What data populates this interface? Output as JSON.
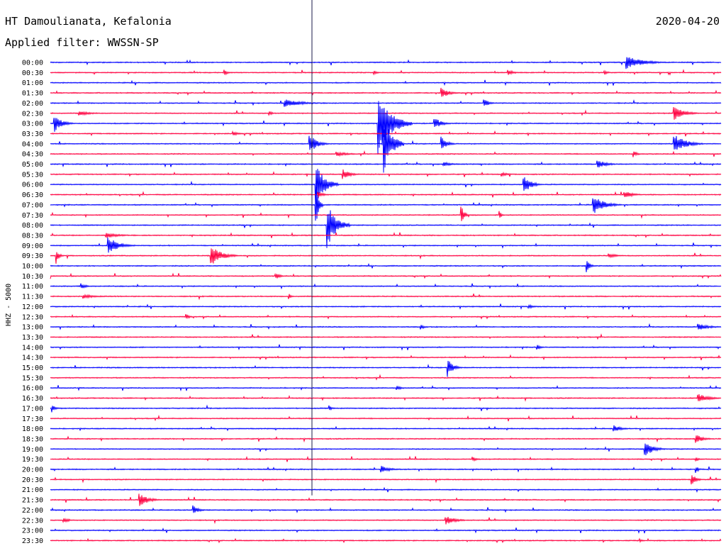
{
  "header": {
    "station": "HT Damoulianata, Kefalonia",
    "date": "2020-04-20",
    "filter": "Applied filter: WWSSN-SP"
  },
  "chart_data": {
    "type": "line",
    "title": "HT Damoulianata, Kefalonia",
    "ylabel": "HHZ - 5000",
    "row_labels": [
      "00:00",
      "00:30",
      "01:00",
      "01:30",
      "02:00",
      "02:30",
      "03:00",
      "03:30",
      "04:00",
      "04:30",
      "05:00",
      "05:30",
      "06:00",
      "06:30",
      "07:00",
      "07:30",
      "08:00",
      "08:30",
      "09:00",
      "09:30",
      "10:00",
      "10:30",
      "11:00",
      "11:30",
      "12:00",
      "12:30",
      "13:00",
      "13:30",
      "14:00",
      "14:30",
      "15:00",
      "15:30",
      "16:00",
      "16:30",
      "17:00",
      "17:30",
      "18:00",
      "18:30",
      "19:00",
      "19:30",
      "20:00",
      "20:30",
      "21:00",
      "21:30",
      "22:00",
      "22:30",
      "23:00",
      "23:30"
    ],
    "trace_colors": [
      "#0000ff",
      "#ff0040"
    ],
    "minutes_per_line": 30,
    "current_time_marker": "21:00",
    "events": [
      {
        "row": 0,
        "minute": 25.8,
        "amp": 9,
        "dur": 1.8
      },
      {
        "row": 1,
        "minute": 7.8,
        "amp": 4,
        "dur": 0.3
      },
      {
        "row": 1,
        "minute": 14.5,
        "amp": 3,
        "dur": 0.3
      },
      {
        "row": 1,
        "minute": 20.5,
        "amp": 4,
        "dur": 0.6
      },
      {
        "row": 1,
        "minute": 24.8,
        "amp": 3,
        "dur": 0.4
      },
      {
        "row": 3,
        "minute": 17.5,
        "amp": 8,
        "dur": 0.8
      },
      {
        "row": 4,
        "minute": 10.5,
        "amp": 6,
        "dur": 1.8
      },
      {
        "row": 4,
        "minute": 19.4,
        "amp": 7,
        "dur": 0.5
      },
      {
        "row": 5,
        "minute": 1.3,
        "amp": 3,
        "dur": 1.5
      },
      {
        "row": 5,
        "minute": 9.8,
        "amp": 3,
        "dur": 0.4
      },
      {
        "row": 5,
        "minute": 27.9,
        "amp": 10,
        "dur": 1.2
      },
      {
        "row": 6,
        "minute": 0.2,
        "amp": 12,
        "dur": 0.8
      },
      {
        "row": 6,
        "minute": 14.7,
        "amp": 40,
        "dur": 1.5
      },
      {
        "row": 6,
        "minute": 17.2,
        "amp": 9,
        "dur": 0.7
      },
      {
        "row": 7,
        "minute": 8.2,
        "amp": 3,
        "dur": 0.6
      },
      {
        "row": 8,
        "minute": 11.6,
        "amp": 14,
        "dur": 0.8
      },
      {
        "row": 8,
        "minute": 14.9,
        "amp": 42,
        "dur": 0.9
      },
      {
        "row": 8,
        "minute": 17.5,
        "amp": 10,
        "dur": 0.6
      },
      {
        "row": 8,
        "minute": 27.9,
        "amp": 14,
        "dur": 1.3
      },
      {
        "row": 9,
        "minute": 12.8,
        "amp": 3,
        "dur": 1.5
      },
      {
        "row": 9,
        "minute": 26.1,
        "amp": 4,
        "dur": 0.5
      },
      {
        "row": 10,
        "minute": 17.6,
        "amp": 3,
        "dur": 1.0
      },
      {
        "row": 10,
        "minute": 24.5,
        "amp": 6,
        "dur": 1.0
      },
      {
        "row": 11,
        "minute": 13.1,
        "amp": 7,
        "dur": 0.8
      },
      {
        "row": 11,
        "minute": 20.2,
        "amp": 3,
        "dur": 0.8
      },
      {
        "row": 12,
        "minute": 11.9,
        "amp": 28,
        "dur": 1.0
      },
      {
        "row": 12,
        "minute": 21.2,
        "amp": 12,
        "dur": 0.8
      },
      {
        "row": 13,
        "minute": 12.0,
        "amp": 4,
        "dur": 0.6
      },
      {
        "row": 13,
        "minute": 25.7,
        "amp": 5,
        "dur": 1.0
      },
      {
        "row": 14,
        "minute": 11.9,
        "amp": 26,
        "dur": 0.3
      },
      {
        "row": 14,
        "minute": 24.3,
        "amp": 13,
        "dur": 1.2
      },
      {
        "row": 15,
        "minute": 18.4,
        "amp": 12,
        "dur": 0.3
      },
      {
        "row": 15,
        "minute": 20.1,
        "amp": 6,
        "dur": 0.2
      },
      {
        "row": 16,
        "minute": 12.4,
        "amp": 30,
        "dur": 1.0
      },
      {
        "row": 17,
        "minute": 2.5,
        "amp": 4,
        "dur": 1.5
      },
      {
        "row": 18,
        "minute": 2.6,
        "amp": 12,
        "dur": 1.2
      },
      {
        "row": 19,
        "minute": 0.3,
        "amp": 8,
        "dur": 0.3
      },
      {
        "row": 19,
        "minute": 7.2,
        "amp": 14,
        "dur": 1.2
      },
      {
        "row": 19,
        "minute": 25.0,
        "amp": 3,
        "dur": 1.0
      },
      {
        "row": 20,
        "minute": 24.0,
        "amp": 10,
        "dur": 0.3
      },
      {
        "row": 21,
        "minute": 10.1,
        "amp": 4,
        "dur": 0.6
      },
      {
        "row": 22,
        "minute": 1.4,
        "amp": 4,
        "dur": 0.5
      },
      {
        "row": 23,
        "minute": 1.5,
        "amp": 3,
        "dur": 1.5
      },
      {
        "row": 23,
        "minute": 10.7,
        "amp": 3,
        "dur": 0.3
      },
      {
        "row": 24,
        "minute": 21.4,
        "amp": 3,
        "dur": 0.5
      },
      {
        "row": 25,
        "minute": 6.1,
        "amp": 4,
        "dur": 0.3
      },
      {
        "row": 26,
        "minute": 16.6,
        "amp": 3,
        "dur": 0.4
      },
      {
        "row": 26,
        "minute": 29.0,
        "amp": 5,
        "dur": 1.2
      },
      {
        "row": 28,
        "minute": 21.8,
        "amp": 3,
        "dur": 0.4
      },
      {
        "row": 30,
        "minute": 17.8,
        "amp": 11,
        "dur": 0.6
      },
      {
        "row": 32,
        "minute": 15.5,
        "amp": 3,
        "dur": 0.6
      },
      {
        "row": 33,
        "minute": 29.0,
        "amp": 6,
        "dur": 1.2
      },
      {
        "row": 34,
        "minute": 0.1,
        "amp": 5,
        "dur": 0.4
      },
      {
        "row": 34,
        "minute": 12.5,
        "amp": 3,
        "dur": 0.3
      },
      {
        "row": 36,
        "minute": 25.2,
        "amp": 5,
        "dur": 0.8
      },
      {
        "row": 37,
        "minute": 28.9,
        "amp": 6,
        "dur": 0.8
      },
      {
        "row": 38,
        "minute": 26.6,
        "amp": 10,
        "dur": 1.0
      },
      {
        "row": 39,
        "minute": 18.9,
        "amp": 3,
        "dur": 0.5
      },
      {
        "row": 39,
        "minute": 28.9,
        "amp": 3,
        "dur": 0.3
      },
      {
        "row": 40,
        "minute": 14.8,
        "amp": 5,
        "dur": 1.0
      },
      {
        "row": 40,
        "minute": 28.9,
        "amp": 4,
        "dur": 0.3
      },
      {
        "row": 41,
        "minute": 28.7,
        "amp": 8,
        "dur": 0.5
      },
      {
        "row": 43,
        "minute": 4.0,
        "amp": 9,
        "dur": 1.0
      },
      {
        "row": 44,
        "minute": 6.4,
        "amp": 6,
        "dur": 0.6
      },
      {
        "row": 45,
        "minute": 0.6,
        "amp": 4,
        "dur": 0.6
      },
      {
        "row": 45,
        "minute": 17.7,
        "amp": 7,
        "dur": 1.0
      },
      {
        "row": 47,
        "minute": 26.4,
        "amp": 2,
        "dur": 0.3
      }
    ]
  }
}
